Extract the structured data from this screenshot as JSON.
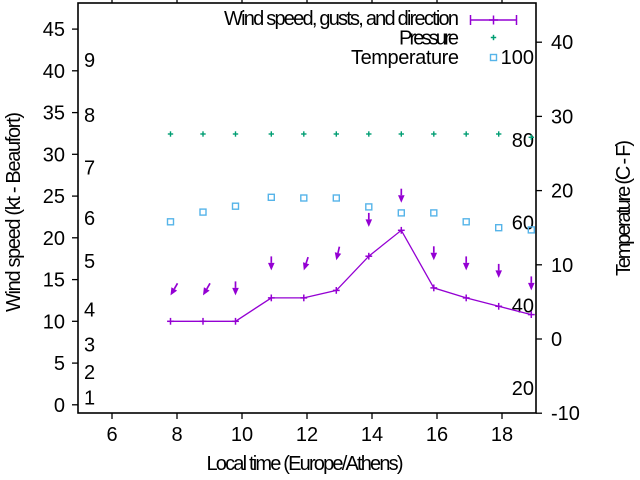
{
  "chart_data": {
    "type": "line",
    "xlabel": "Local time (Europe/Athens)",
    "ylabel_left": "Wind speed (kt - Beaufort)",
    "ylabel_right": "Temperature (C - F)",
    "legend": [
      {
        "label": "Wind speed, gusts, and direction",
        "series": "wind",
        "marker": "errorbar-plus"
      },
      {
        "label": "Pressure",
        "series": "pressure",
        "marker": "plus"
      },
      {
        "label": "Temperature",
        "series": "temperature",
        "marker": "open-square"
      }
    ],
    "colors": {
      "wind": "#9400d3",
      "pressure": "#009e73",
      "temperature": "#56b4e9",
      "axis": "#000000",
      "background": "#ffffff"
    },
    "x_ticks": [
      6,
      8,
      10,
      12,
      14,
      16,
      18
    ],
    "x_range": [
      4.95,
      19.05
    ],
    "left_axis_ticks_kt": [
      0,
      5,
      10,
      15,
      20,
      25,
      30,
      35,
      40,
      45
    ],
    "left_axis_range_kt": [
      -1,
      48.1
    ],
    "beaufort_scale_labels": [
      {
        "label": "1",
        "kt": 0.9
      },
      {
        "label": "2",
        "kt": 3.9
      },
      {
        "label": "3",
        "kt": 7.2
      },
      {
        "label": "4",
        "kt": 11.4
      },
      {
        "label": "5",
        "kt": 17.2
      },
      {
        "label": "6",
        "kt": 22.4
      },
      {
        "label": "7",
        "kt": 28.4
      },
      {
        "label": "8",
        "kt": 34.7
      },
      {
        "label": "9",
        "kt": 41.3
      }
    ],
    "right_axis_ticks_c": [
      -10,
      0,
      10,
      20,
      30,
      40
    ],
    "right_axis_range_c": [
      -10.4,
      45.3
    ],
    "inner_scale_labels": [
      20,
      40,
      60,
      80,
      100
    ],
    "x_hours": [
      7.8,
      8.8,
      9.8,
      10.9,
      11.9,
      12.9,
      13.9,
      14.9,
      15.9,
      16.9,
      17.9,
      18.9
    ],
    "series": {
      "wind_speed_kt": [
        10,
        10,
        10,
        12.8,
        12.8,
        13.7,
        17.8,
        20.9,
        14,
        12.8,
        11.8,
        10.8
      ],
      "wind_gust_kt": [
        13.1,
        13.1,
        13.1,
        16.1,
        16.1,
        17.3,
        21.3,
        24.2,
        17.3,
        16.1,
        15.2,
        13.7
      ],
      "wind_dir_arrow_deg_from_down": [
        30,
        30,
        0,
        0,
        18,
        13,
        0,
        0,
        0,
        0,
        0,
        0
      ],
      "pressure_inner_scale": [
        81.4,
        81.4,
        81.4,
        81.4,
        81.4,
        81.4,
        81.4,
        81.4,
        81.4,
        81.4,
        81.4,
        80.6
      ],
      "temperature_c": [
        15.8,
        17.1,
        17.9,
        19.1,
        19,
        19,
        17.8,
        17,
        17,
        15.8,
        15,
        14.7
      ]
    }
  }
}
